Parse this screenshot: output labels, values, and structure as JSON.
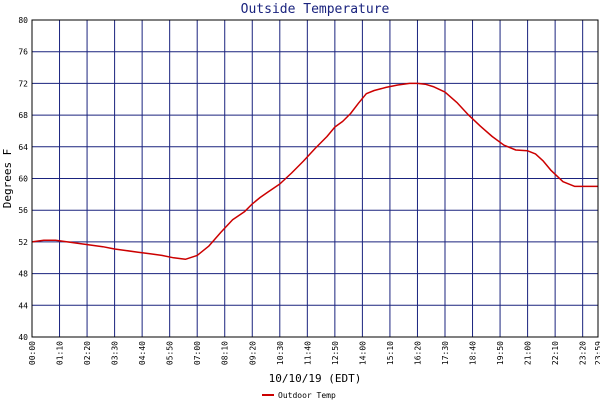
{
  "chart_data": {
    "type": "line",
    "title": "Outside Temperature",
    "xlabel": "10/10/19 (EDT)",
    "ylabel": "Degrees F",
    "ylim": [
      40,
      80
    ],
    "y_ticks": [
      40,
      44,
      48,
      52,
      56,
      60,
      64,
      68,
      72,
      76,
      80
    ],
    "x_tick_labels": [
      "00:00",
      "01:10",
      "02:20",
      "03:30",
      "04:40",
      "05:50",
      "07:00",
      "08:10",
      "09:20",
      "10:30",
      "11:40",
      "12:50",
      "14:00",
      "15:10",
      "16:20",
      "17:30",
      "18:40",
      "19:50",
      "21:00",
      "22:10",
      "23:20",
      "23:59"
    ],
    "grid": true,
    "legend_placement": "bottom-left",
    "colors": {
      "background": "#ffffff",
      "grid": "#1a237e",
      "series": "#cc0000",
      "text": "#000000",
      "title": "#1a237e"
    },
    "series": [
      {
        "name": "Outdoor Temp",
        "x": [
          "00:00",
          "00:30",
          "01:00",
          "01:30",
          "02:00",
          "02:30",
          "03:00",
          "03:30",
          "04:00",
          "04:30",
          "05:00",
          "05:30",
          "06:00",
          "06:30",
          "07:00",
          "07:30",
          "08:00",
          "08:30",
          "09:00",
          "09:20",
          "09:40",
          "10:00",
          "10:30",
          "11:00",
          "11:30",
          "12:00",
          "12:30",
          "12:50",
          "13:10",
          "13:30",
          "13:50",
          "14:10",
          "14:30",
          "15:00",
          "15:30",
          "16:00",
          "16:20",
          "16:40",
          "17:00",
          "17:30",
          "18:00",
          "18:30",
          "19:00",
          "19:30",
          "20:00",
          "20:30",
          "21:00",
          "21:20",
          "21:40",
          "22:00",
          "22:30",
          "23:00",
          "23:30",
          "23:59"
        ],
        "values": [
          52.0,
          52.2,
          52.2,
          52.0,
          51.8,
          51.6,
          51.4,
          51.1,
          50.9,
          50.7,
          50.5,
          50.3,
          50.0,
          49.8,
          50.3,
          51.5,
          53.2,
          54.8,
          55.8,
          56.8,
          57.6,
          58.3,
          59.3,
          60.7,
          62.2,
          63.8,
          65.3,
          66.5,
          67.2,
          68.2,
          69.5,
          70.7,
          71.1,
          71.5,
          71.8,
          72.0,
          72.0,
          71.9,
          71.6,
          70.9,
          69.6,
          68.0,
          66.6,
          65.3,
          64.2,
          63.6,
          63.5,
          63.1,
          62.2,
          61.0,
          59.6,
          59.0,
          59.0,
          59.0
        ]
      }
    ]
  }
}
